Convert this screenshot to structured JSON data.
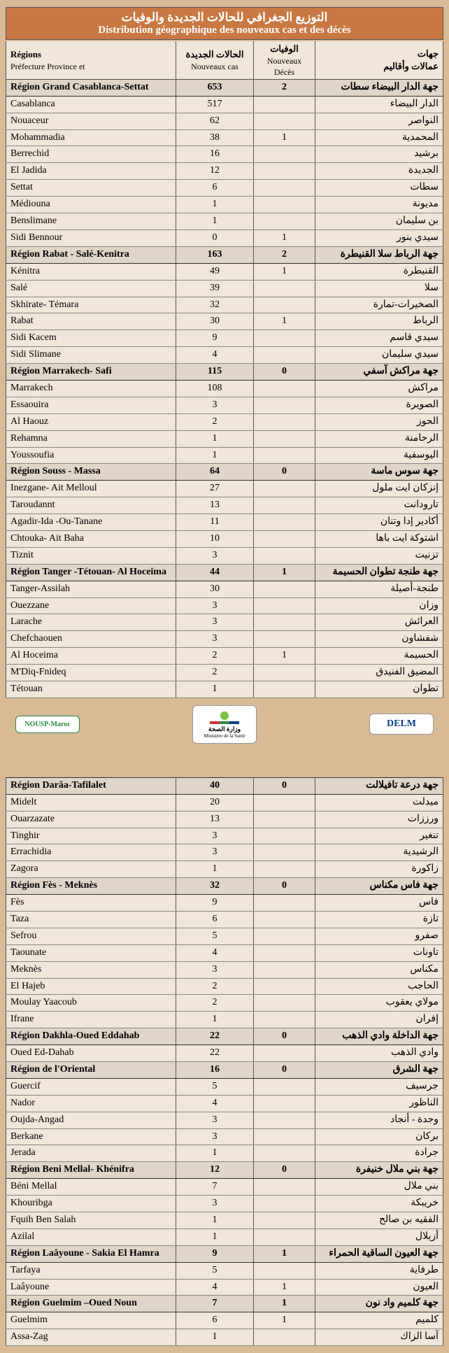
{
  "title_ar": "التوزيع الجغرافي للحالات الجديدة والوفيات",
  "title_fr": "Distribution géographique des nouveaux cas et des décès",
  "headers": {
    "fr_top": "Régions",
    "fr_bot": "Préfecture Province et",
    "cas_ar": "الحالات الجديدة",
    "cas_fr": "Nouveaux cas",
    "dec_ar": "الوفيات",
    "dec_fr": "Nouveaux Décès",
    "ar_top": "جهات",
    "ar_bot": "عمالات وأقاليم"
  },
  "regions": [
    {
      "fr": "Région Grand Casablanca-Settat",
      "cas": "653",
      "dec": "2",
      "ar": "جهة الدار البيضاء سطات",
      "rows": [
        {
          "fr": "Casablanca",
          "cas": "517",
          "dec": "",
          "ar": "الدار البيضاء"
        },
        {
          "fr": "Nouaceur",
          "cas": "62",
          "dec": "",
          "ar": "النواصر"
        },
        {
          "fr": "Mohammadia",
          "cas": "38",
          "dec": "1",
          "ar": "المحمدية"
        },
        {
          "fr": "Berrechid",
          "cas": "16",
          "dec": "",
          "ar": "برشيد"
        },
        {
          "fr": "El Jadida",
          "cas": "12",
          "dec": "",
          "ar": "الجديدة"
        },
        {
          "fr": "Settat",
          "cas": "6",
          "dec": "",
          "ar": "سطات"
        },
        {
          "fr": "Médiouna",
          "cas": "1",
          "dec": "",
          "ar": "مديونة"
        },
        {
          "fr": "Benslimane",
          "cas": "1",
          "dec": "",
          "ar": "بن سليمان"
        },
        {
          "fr": "Sidi Bennour",
          "cas": "0",
          "dec": "1",
          "ar": "سيدي بنور"
        }
      ]
    },
    {
      "fr": "Région Rabat - Salé-Kenitra",
      "cas": "163",
      "dec": "2",
      "ar": "جهة الرباط سلا القنيطرة",
      "rows": [
        {
          "fr": "Kénitra",
          "cas": "49",
          "dec": "1",
          "ar": "القنيطرة"
        },
        {
          "fr": "Salé",
          "cas": "39",
          "dec": "",
          "ar": "سلا"
        },
        {
          "fr": "Skhirate- Témara",
          "cas": "32",
          "dec": "",
          "ar": "الصخيرات-تمارة"
        },
        {
          "fr": "Rabat",
          "cas": "30",
          "dec": "1",
          "ar": "الرباط"
        },
        {
          "fr": "Sidi Kacem",
          "cas": "9",
          "dec": "",
          "ar": "سيدي قاسم"
        },
        {
          "fr": "Sidi Slimane",
          "cas": "4",
          "dec": "",
          "ar": "سيدي سليمان"
        }
      ]
    },
    {
      "fr": "Région Marrakech- Safi",
      "cas": "115",
      "dec": "0",
      "ar": "جهة مراكش آسفي",
      "rows": [
        {
          "fr": "Marrakech",
          "cas": "108",
          "dec": "",
          "ar": "مراكش"
        },
        {
          "fr": "Essaouira",
          "cas": "3",
          "dec": "",
          "ar": "الصويرة"
        },
        {
          "fr": "Al  Haouz",
          "cas": "2",
          "dec": "",
          "ar": "الحوز"
        },
        {
          "fr": "Rehamna",
          "cas": "1",
          "dec": "",
          "ar": "الرحامنة"
        },
        {
          "fr": "Youssoufia",
          "cas": "1",
          "dec": "",
          "ar": "اليوسفية"
        }
      ]
    },
    {
      "fr": "Région Souss - Massa",
      "cas": "64",
      "dec": "0",
      "ar": "جهة سوس ماسة",
      "rows": [
        {
          "fr": "Inezgane- Ait Melloul",
          "cas": "27",
          "dec": "",
          "ar": "إنزكان ايت ملول"
        },
        {
          "fr": "Taroudannt",
          "cas": "13",
          "dec": "",
          "ar": "تارودانت"
        },
        {
          "fr": "Agadir-Ida -Ou-Tanane",
          "cas": "11",
          "dec": "",
          "ar": "أكادير إدا وتنان"
        },
        {
          "fr": "Chtouka- Ait Baha",
          "cas": "10",
          "dec": "",
          "ar": "اشتوكة ايت باها"
        },
        {
          "fr": "Tiznit",
          "cas": "3",
          "dec": "",
          "ar": "تزنيت"
        }
      ]
    },
    {
      "fr": "Région Tanger -Tétouan- Al Hoceima",
      "cas": "44",
      "dec": "1",
      "ar": "جهة طنجة تطوان الحسيمة",
      "rows": [
        {
          "fr": "Tanger-Assilah",
          "cas": "30",
          "dec": "",
          "ar": "طنجة-أصيلة"
        },
        {
          "fr": "Ouezzane",
          "cas": "3",
          "dec": "",
          "ar": "وزان"
        },
        {
          "fr": "Larache",
          "cas": "3",
          "dec": "",
          "ar": "العرائش"
        },
        {
          "fr": "Chefchaouen",
          "cas": "3",
          "dec": "",
          "ar": "شفشاون"
        },
        {
          "fr": "Al Hoceima",
          "cas": "2",
          "dec": "1",
          "ar": "الحسيمة"
        },
        {
          "fr": "M'Diq-Fnideq",
          "cas": "2",
          "dec": "",
          "ar": "المضيق الفنيدق"
        },
        {
          "fr": "Tétouan",
          "cas": "1",
          "dec": "",
          "ar": "تطوان"
        }
      ]
    },
    {
      "break": true,
      "fr": "Région Darâa-Tafilalet",
      "cas": "40",
      "dec": "0",
      "ar": "جهة درعة تافيلالت",
      "rows": [
        {
          "fr": "Midelt",
          "cas": "20",
          "dec": "",
          "ar": "ميدلت"
        },
        {
          "fr": "Ouarzazate",
          "cas": "13",
          "dec": "",
          "ar": "ورززات"
        },
        {
          "fr": "Tinghir",
          "cas": "3",
          "dec": "",
          "ar": "تنغير"
        },
        {
          "fr": "Errachidia",
          "cas": "3",
          "dec": "",
          "ar": "الرشيدية"
        },
        {
          "fr": "Zagora",
          "cas": "1",
          "dec": "",
          "ar": "زاكورة"
        }
      ]
    },
    {
      "fr": "Région Fès - Meknès",
      "cas": "32",
      "dec": "0",
      "ar": "جهة فاس مكناس",
      "rows": [
        {
          "fr": "Fès",
          "cas": "9",
          "dec": "",
          "ar": "فاس"
        },
        {
          "fr": "Taza",
          "cas": "6",
          "dec": "",
          "ar": "تازة"
        },
        {
          "fr": "Sefrou",
          "cas": "5",
          "dec": "",
          "ar": "صفرو"
        },
        {
          "fr": "Taounate",
          "cas": "4",
          "dec": "",
          "ar": "تاونات"
        },
        {
          "fr": "Meknès",
          "cas": "3",
          "dec": "",
          "ar": "مكناس"
        },
        {
          "fr": "El  Hajeb",
          "cas": "2",
          "dec": "",
          "ar": "الحاجب"
        },
        {
          "fr": "Moulay Yaacoub",
          "cas": "2",
          "dec": "",
          "ar": "مولاي يعقوب"
        },
        {
          "fr": "Ifrane",
          "cas": "1",
          "dec": "",
          "ar": "إفران"
        }
      ]
    },
    {
      "fr": "Région Dakhla-Oued Eddahab",
      "cas": "22",
      "dec": "0",
      "ar": "جهة الداخلة وادي الذهب",
      "rows": [
        {
          "fr": "Oued Ed-Dahab",
          "cas": "22",
          "dec": "",
          "ar": "وادي الذهب"
        }
      ]
    },
    {
      "fr": "Région de l'Oriental",
      "cas": "16",
      "dec": "0",
      "ar": "جهة الشرق",
      "rows": [
        {
          "fr": "Guercif",
          "cas": "5",
          "dec": "",
          "ar": "جرسيف"
        },
        {
          "fr": "Nador",
          "cas": "4",
          "dec": "",
          "ar": "الناظور"
        },
        {
          "fr": "Oujda-Angad",
          "cas": "3",
          "dec": "",
          "ar": "وجدة - أنجاد"
        },
        {
          "fr": "Berkane",
          "cas": "3",
          "dec": "",
          "ar": "بركان"
        },
        {
          "fr": "Jerada",
          "cas": "1",
          "dec": "",
          "ar": "جرادة"
        }
      ]
    },
    {
      "fr": "Région Beni Mellal- Khénifra",
      "cas": "12",
      "dec": "0",
      "ar": "جهة بني ملال خنيفرة",
      "rows": [
        {
          "fr": "Béni Mellal",
          "cas": "7",
          "dec": "",
          "ar": "بني ملال"
        },
        {
          "fr": "Khouribga",
          "cas": "3",
          "dec": "",
          "ar": "خريبكة"
        },
        {
          "fr": "Fquih Ben Salah",
          "cas": "1",
          "dec": "",
          "ar": "الفقيه بن صالح"
        },
        {
          "fr": "Azilal",
          "cas": "1",
          "dec": "",
          "ar": "أزيلال"
        }
      ]
    },
    {
      "fr": "Région Laâyoune - Sakia El Hamra",
      "cas": "9",
      "dec": "1",
      "ar": "جهة العيون الساقية الحمراء",
      "rows": [
        {
          "fr": "Tarfaya",
          "cas": "5",
          "dec": "",
          "ar": "طرفاية"
        },
        {
          "fr": "Laâyoune",
          "cas": "4",
          "dec": "1",
          "ar": "العيون"
        }
      ]
    },
    {
      "fr": "Région Guelmim –Oued Noun",
      "cas": "7",
      "dec": "1",
      "ar": "جهة كلميم واد نون",
      "rows": [
        {
          "fr": "Guelmim",
          "cas": "6",
          "dec": "1",
          "ar": "كلميم"
        },
        {
          "fr": "Assa-Zag",
          "cas": "1",
          "dec": "",
          "ar": "آسا الزاك"
        }
      ]
    }
  ],
  "logos": {
    "left": "NOUSP-Maroc",
    "center_ar": "وزارة الصحة",
    "center_fr": "Ministère de la Santé",
    "right": "DELM"
  }
}
